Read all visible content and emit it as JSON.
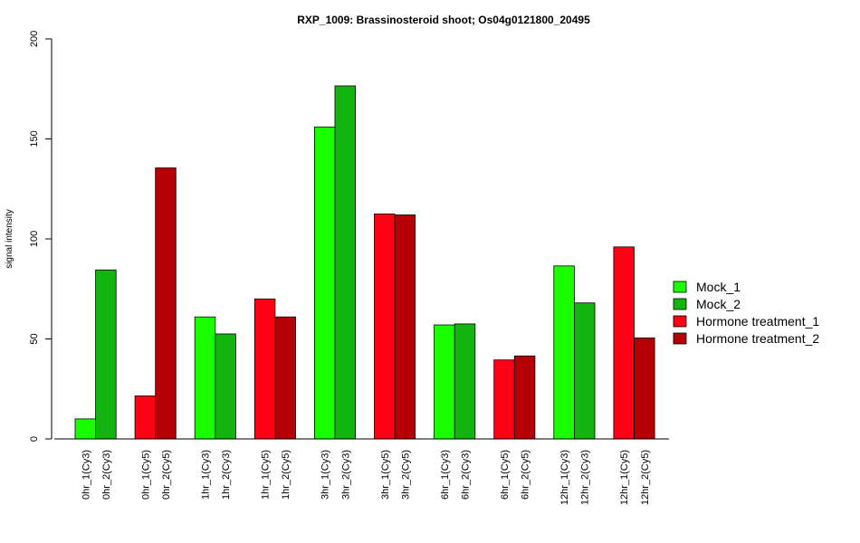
{
  "chart_data": {
    "type": "bar",
    "title": "RXP_1009: Brassinosteroid shoot; Os04g0121800_20495",
    "xlabel": "",
    "ylabel": "signal intensity",
    "ylim": [
      0,
      200
    ],
    "yticks": [
      0,
      50,
      100,
      150,
      200
    ],
    "legend_position": "right",
    "groups": [
      {
        "bars": [
          {
            "label": "0hr_1(Cy3)",
            "value": 10,
            "series": "Mock_1"
          },
          {
            "label": "0hr_2(Cy3)",
            "value": 84.5,
            "series": "Mock_2"
          }
        ]
      },
      {
        "bars": [
          {
            "label": "0hr_1(Cy5)",
            "value": 21.5,
            "series": "Hormone treatment_1"
          },
          {
            "label": "0hr_2(Cy5)",
            "value": 135.5,
            "series": "Hormone treatment_2"
          }
        ]
      },
      {
        "bars": [
          {
            "label": "1hr_1(Cy3)",
            "value": 61,
            "series": "Mock_1"
          },
          {
            "label": "1hr_2(Cy3)",
            "value": 52.5,
            "series": "Mock_2"
          }
        ]
      },
      {
        "bars": [
          {
            "label": "1hr_1(Cy5)",
            "value": 70,
            "series": "Hormone treatment_1"
          },
          {
            "label": "1hr_2(Cy5)",
            "value": 61,
            "series": "Hormone treatment_2"
          }
        ]
      },
      {
        "bars": [
          {
            "label": "3hr_1(Cy3)",
            "value": 156,
            "series": "Mock_1"
          },
          {
            "label": "3hr_2(Cy3)",
            "value": 176.5,
            "series": "Mock_2"
          }
        ]
      },
      {
        "bars": [
          {
            "label": "3hr_1(Cy5)",
            "value": 112.5,
            "series": "Hormone treatment_1"
          },
          {
            "label": "3hr_2(Cy5)",
            "value": 112,
            "series": "Hormone treatment_2"
          }
        ]
      },
      {
        "bars": [
          {
            "label": "6hr_1(Cy3)",
            "value": 57,
            "series": "Mock_1"
          },
          {
            "label": "6hr_2(Cy3)",
            "value": 57.5,
            "series": "Mock_2"
          }
        ]
      },
      {
        "bars": [
          {
            "label": "6hr_1(Cy5)",
            "value": 39.5,
            "series": "Hormone treatment_1"
          },
          {
            "label": "6hr_2(Cy5)",
            "value": 41.5,
            "series": "Hormone treatment_2"
          }
        ]
      },
      {
        "bars": [
          {
            "label": "12hr_1(Cy3)",
            "value": 86.5,
            "series": "Mock_1"
          },
          {
            "label": "12hr_2(Cy3)",
            "value": 68,
            "series": "Mock_2"
          }
        ]
      },
      {
        "bars": [
          {
            "label": "12hr_1(Cy5)",
            "value": 96,
            "series": "Hormone treatment_1"
          },
          {
            "label": "12hr_2(Cy5)",
            "value": 50.5,
            "series": "Hormone treatment_2"
          }
        ]
      }
    ],
    "legend": [
      {
        "name": "Mock_1",
        "color": "#19ff00"
      },
      {
        "name": "Mock_2",
        "color": "#11b50d"
      },
      {
        "name": "Hormone treatment_1",
        "color": "#ff0015"
      },
      {
        "name": "Hormone treatment_2",
        "color": "#b50006"
      }
    ]
  }
}
